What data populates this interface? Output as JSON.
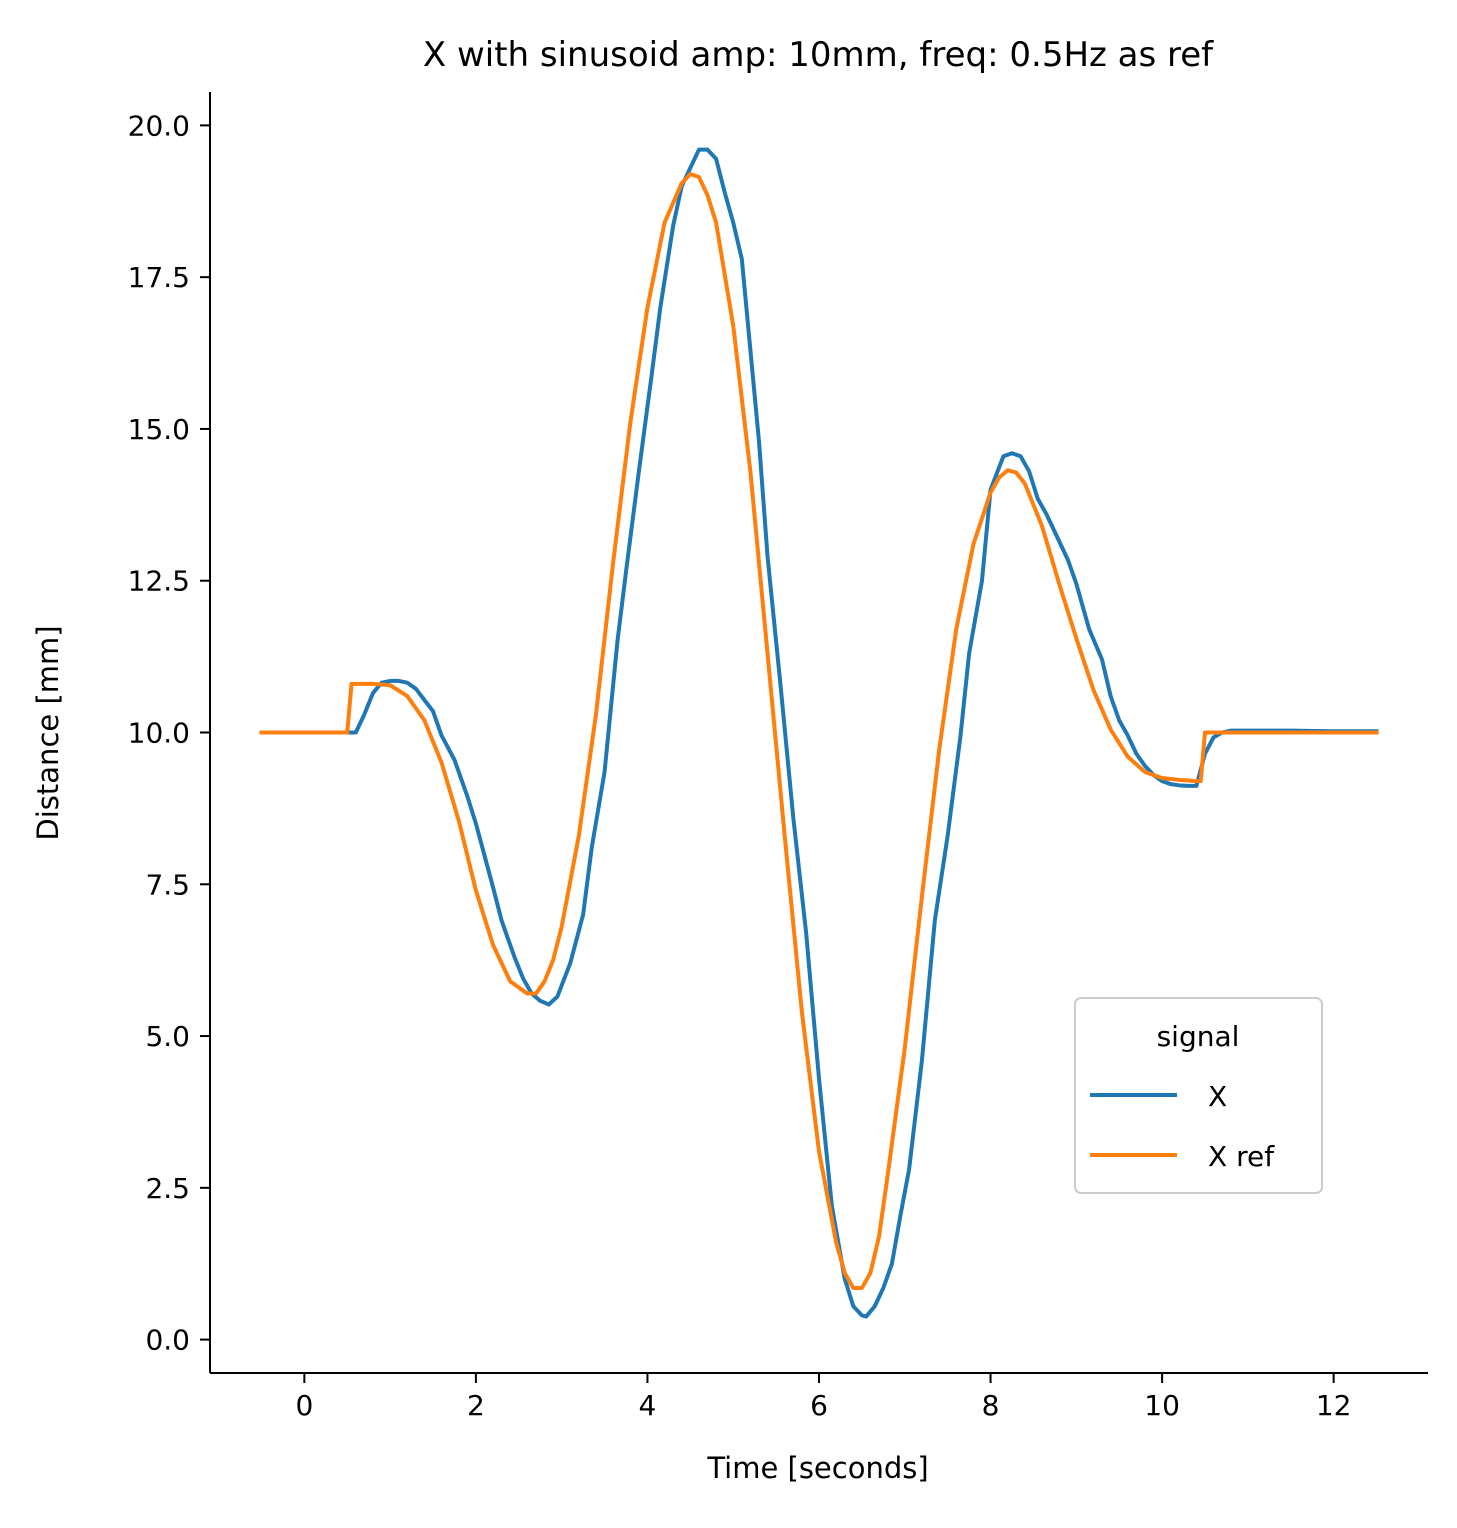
{
  "chart_data": {
    "type": "line",
    "title": "X with sinusoid amp: 10mm, freq: 0.5Hz as ref",
    "xlabel": "Time [seconds]",
    "ylabel": "Distance [mm]",
    "xlim": [
      -1.1,
      13.1
    ],
    "ylim": [
      -0.55,
      20.55
    ],
    "xticks": [
      0,
      2,
      4,
      6,
      8,
      10,
      12
    ],
    "xtick_labels": [
      "0",
      "2",
      "4",
      "6",
      "8",
      "10",
      "12"
    ],
    "yticks": [
      0,
      2.5,
      5,
      7.5,
      10,
      12.5,
      15,
      17.5,
      20
    ],
    "ytick_labels": [
      "0.0",
      "2.5",
      "5.0",
      "7.5",
      "10.0",
      "12.5",
      "15.0",
      "17.5",
      "20.0"
    ],
    "grid": false,
    "legend": {
      "title": "signal",
      "position": "lower-right"
    },
    "series": [
      {
        "name": "X",
        "color": "#1f77b4",
        "x": [
          -0.5,
          0.5,
          0.6,
          0.7,
          0.8,
          0.9,
          1.0,
          1.1,
          1.2,
          1.3,
          1.5,
          1.6,
          1.75,
          1.9,
          2.0,
          2.2,
          2.3,
          2.45,
          2.55,
          2.65,
          2.75,
          2.85,
          2.95,
          3.1,
          3.25,
          3.35,
          3.5,
          3.65,
          3.75,
          3.9,
          4.05,
          4.15,
          4.3,
          4.4,
          4.5,
          4.6,
          4.7,
          4.8,
          4.9,
          5.0,
          5.1,
          5.2,
          5.3,
          5.4,
          5.55,
          5.7,
          5.85,
          6.0,
          6.15,
          6.3,
          6.4,
          6.5,
          6.55,
          6.65,
          6.75,
          6.85,
          6.95,
          7.05,
          7.2,
          7.35,
          7.5,
          7.65,
          7.75,
          7.9,
          8.0,
          8.15,
          8.25,
          8.35,
          8.45,
          8.55,
          8.65,
          8.75,
          8.9,
          9.0,
          9.15,
          9.3,
          9.4,
          9.5,
          9.6,
          9.7,
          9.8,
          9.9,
          10.0,
          10.1,
          10.2,
          10.3,
          10.4,
          10.5,
          10.6,
          10.7,
          10.8,
          10.9,
          11.0,
          11.2,
          11.5,
          12.0,
          12.5
        ],
        "y": [
          10.0,
          10.0,
          10.0,
          10.3,
          10.65,
          10.82,
          10.85,
          10.85,
          10.82,
          10.72,
          10.35,
          9.95,
          9.55,
          8.95,
          8.5,
          7.45,
          6.9,
          6.3,
          5.95,
          5.7,
          5.58,
          5.52,
          5.65,
          6.2,
          7.0,
          8.1,
          9.35,
          11.5,
          12.65,
          14.3,
          15.9,
          17.0,
          18.35,
          19.0,
          19.3,
          19.6,
          19.6,
          19.45,
          18.9,
          18.4,
          17.8,
          16.3,
          14.8,
          12.9,
          10.8,
          8.6,
          6.7,
          4.3,
          2.2,
          1.0,
          0.55,
          0.4,
          0.38,
          0.55,
          0.85,
          1.25,
          2.05,
          2.8,
          4.6,
          6.9,
          8.3,
          9.95,
          11.3,
          12.5,
          14.0,
          14.55,
          14.6,
          14.55,
          14.3,
          13.85,
          13.6,
          13.3,
          12.85,
          12.45,
          11.7,
          11.2,
          10.6,
          10.2,
          9.95,
          9.65,
          9.45,
          9.3,
          9.2,
          9.15,
          9.13,
          9.12,
          9.12,
          9.65,
          9.92,
          10.0,
          10.03,
          10.03,
          10.03,
          10.03,
          10.03,
          10.02,
          10.02
        ]
      },
      {
        "name": "X ref",
        "color": "#ff7f0e",
        "x": [
          -0.5,
          0.5,
          0.55,
          0.6,
          0.8,
          1.0,
          1.2,
          1.4,
          1.6,
          1.8,
          2.0,
          2.2,
          2.4,
          2.6,
          2.7,
          2.8,
          2.9,
          3.0,
          3.2,
          3.4,
          3.6,
          3.8,
          4.0,
          4.2,
          4.4,
          4.5,
          4.6,
          4.7,
          4.8,
          5.0,
          5.2,
          5.4,
          5.6,
          5.8,
          6.0,
          6.2,
          6.3,
          6.4,
          6.5,
          6.6,
          6.7,
          6.8,
          7.0,
          7.2,
          7.4,
          7.6,
          7.8,
          8.0,
          8.1,
          8.2,
          8.3,
          8.4,
          8.6,
          8.8,
          9.0,
          9.2,
          9.4,
          9.6,
          9.8,
          10.0,
          10.2,
          10.4,
          10.45,
          10.5,
          10.6,
          11.0,
          12.0,
          12.5
        ],
        "y": [
          10.0,
          10.0,
          10.8,
          10.8,
          10.8,
          10.78,
          10.6,
          10.2,
          9.5,
          8.55,
          7.4,
          6.5,
          5.9,
          5.7,
          5.7,
          5.9,
          6.25,
          6.8,
          8.3,
          10.3,
          12.8,
          15.1,
          17.0,
          18.4,
          19.05,
          19.2,
          19.15,
          18.85,
          18.4,
          16.7,
          14.3,
          11.3,
          8.3,
          5.4,
          3.1,
          1.6,
          1.1,
          0.85,
          0.85,
          1.1,
          1.7,
          2.7,
          4.8,
          7.3,
          9.7,
          11.7,
          13.1,
          13.95,
          14.2,
          14.32,
          14.28,
          14.1,
          13.4,
          12.45,
          11.55,
          10.7,
          10.05,
          9.6,
          9.35,
          9.25,
          9.22,
          9.2,
          9.2,
          10.0,
          10.0,
          10.0,
          10.0,
          10.0
        ]
      }
    ]
  }
}
